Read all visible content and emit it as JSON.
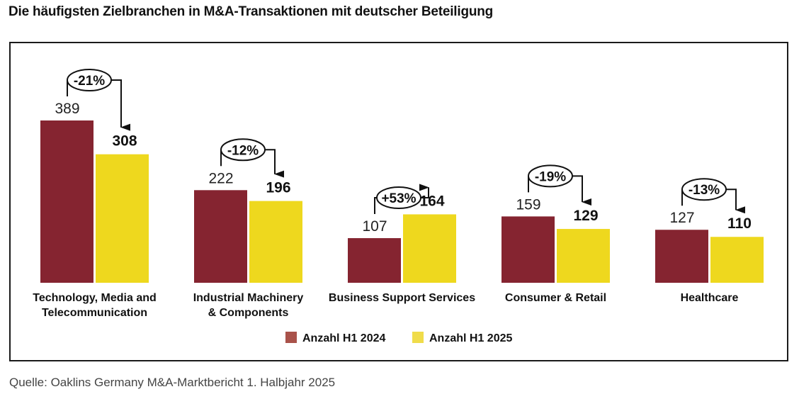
{
  "title": "Die häufigsten Zielbranchen in M&A-Transaktionen mit deutscher Beteiligung",
  "source": "Quelle: Oaklins Germany M&A-Marktbericht 1. Halbjahr 2025",
  "chart_data": {
    "type": "bar",
    "title": "Die häufigsten Zielbranchen in M&A-Transaktionen mit deutscher Beteiligung",
    "xlabel": "",
    "ylabel": "",
    "ylim": [
      0,
      389
    ],
    "grid": false,
    "legend_position": "bottom-center",
    "categories": [
      [
        "Technology, Media and",
        "Telecommunication"
      ],
      [
        "Industrial Machinery",
        "& Components"
      ],
      [
        "Business Support Services"
      ],
      [
        "Consumer & Retail"
      ],
      [
        "Healthcare"
      ]
    ],
    "series": [
      {
        "name": "Anzahl H1 2024",
        "color": "#852430",
        "values": [
          389,
          222,
          107,
          159,
          127
        ]
      },
      {
        "name": "Anzahl H1 2025",
        "color": "#eed81e",
        "values": [
          308,
          196,
          164,
          129,
          110
        ]
      }
    ],
    "changes": [
      "-21%",
      "-12%",
      "+53%",
      "-19%",
      "-13%"
    ],
    "legend_colors": [
      "#a9524a",
      "#f0dc4a"
    ]
  }
}
